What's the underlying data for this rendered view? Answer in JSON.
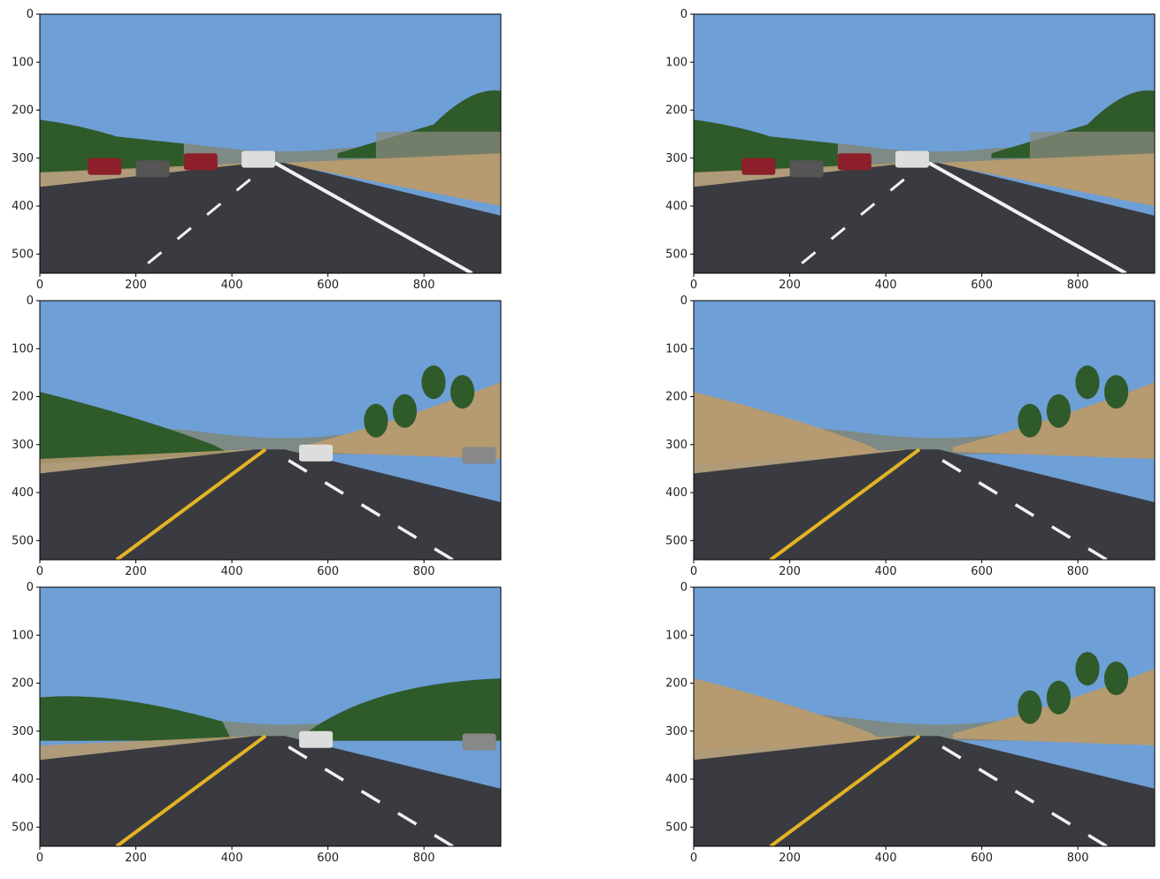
{
  "figure": {
    "panels": [
      {
        "id": "p1",
        "scene": "curve_white",
        "lane_left": "white",
        "lane_right": "white_solid",
        "cars": true
      },
      {
        "id": "p2",
        "scene": "curve_white_2",
        "lane_left": "white",
        "lane_right": "white_solid",
        "cars": true
      },
      {
        "id": "p3",
        "scene": "yellow_hills",
        "lane_left": "yellow_solid",
        "lane_right": "white_dashed",
        "cars": true
      },
      {
        "id": "p4",
        "scene": "yellow_hills_2",
        "lane_left": "yellow_solid",
        "lane_right": "white_dashed",
        "cars": false
      },
      {
        "id": "p5",
        "scene": "yellow_trees",
        "lane_left": "yellow_solid",
        "lane_right": "white_dashed",
        "cars": true
      },
      {
        "id": "p6",
        "scene": "yellow_hills_3",
        "lane_left": "yellow_solid",
        "lane_right": "white_dashed",
        "cars": false
      }
    ],
    "x_ticks": [
      "0",
      "200",
      "400",
      "600",
      "800"
    ],
    "y_ticks": [
      "0",
      "100",
      "200",
      "300",
      "400",
      "500"
    ],
    "x_range": [
      0,
      960
    ],
    "y_range": [
      0,
      540
    ],
    "colors": {
      "sky": "#6e9fd6",
      "road": "#3a3b40",
      "grass_dry": "#b69a70",
      "trees": "#2f5a2a",
      "lane_white": "#f2f2f2",
      "lane_yellow": "#e3b324"
    }
  }
}
